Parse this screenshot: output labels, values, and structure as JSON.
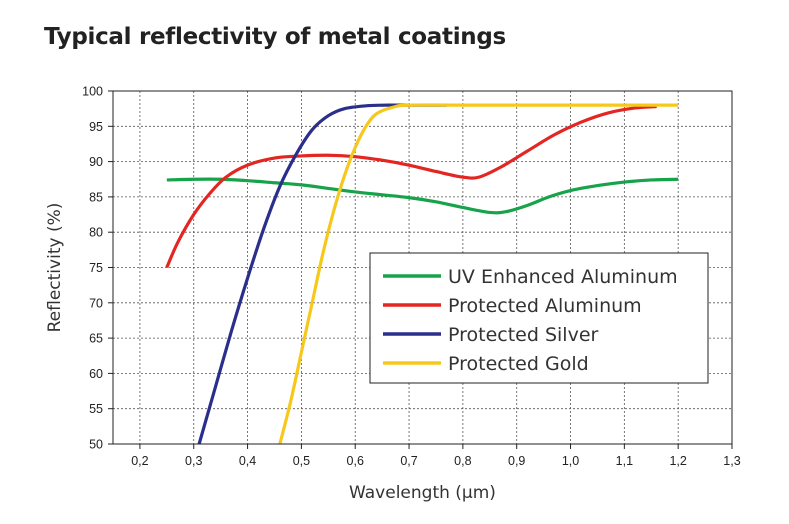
{
  "chart_data": {
    "type": "line",
    "title": "Typical reflectivity of metal coatings",
    "xlabel": "Wavelength (µm)",
    "ylabel": "Reflectivity (%)",
    "xlim": [
      0.15,
      1.3
    ],
    "ylim": [
      50,
      100
    ],
    "x_ticks": [
      "0,2",
      "0,3",
      "0,4",
      "0,5",
      "0,6",
      "0,7",
      "0,8",
      "0,9",
      "1,0",
      "1,1",
      "1,2",
      "1,3"
    ],
    "y_ticks": [
      "50",
      "55",
      "60",
      "65",
      "70",
      "75",
      "80",
      "85",
      "90",
      "95",
      "100"
    ],
    "grid": true,
    "legend_position": "lower-right",
    "series": [
      {
        "name": "UV Enhanced Aluminum",
        "color": "#17a34a",
        "points": [
          [
            0.25,
            87.4
          ],
          [
            0.3,
            87.5
          ],
          [
            0.35,
            87.5
          ],
          [
            0.4,
            87.3
          ],
          [
            0.45,
            87.0
          ],
          [
            0.5,
            86.7
          ],
          [
            0.55,
            86.2
          ],
          [
            0.6,
            85.7
          ],
          [
            0.65,
            85.3
          ],
          [
            0.7,
            84.9
          ],
          [
            0.75,
            84.3
          ],
          [
            0.8,
            83.5
          ],
          [
            0.85,
            82.8
          ],
          [
            0.88,
            82.9
          ],
          [
            0.92,
            83.8
          ],
          [
            0.96,
            85.0
          ],
          [
            1.0,
            85.9
          ],
          [
            1.05,
            86.6
          ],
          [
            1.1,
            87.1
          ],
          [
            1.15,
            87.4
          ],
          [
            1.2,
            87.5
          ]
        ]
      },
      {
        "name": "Protected Aluminum",
        "color": "#e32622",
        "points": [
          [
            0.25,
            75.0
          ],
          [
            0.27,
            78.5
          ],
          [
            0.3,
            82.5
          ],
          [
            0.33,
            85.5
          ],
          [
            0.36,
            87.8
          ],
          [
            0.4,
            89.5
          ],
          [
            0.45,
            90.5
          ],
          [
            0.5,
            90.8
          ],
          [
            0.55,
            90.9
          ],
          [
            0.6,
            90.7
          ],
          [
            0.65,
            90.2
          ],
          [
            0.7,
            89.5
          ],
          [
            0.75,
            88.6
          ],
          [
            0.8,
            87.8
          ],
          [
            0.83,
            87.8
          ],
          [
            0.87,
            89.2
          ],
          [
            0.92,
            91.5
          ],
          [
            0.97,
            93.8
          ],
          [
            1.02,
            95.6
          ],
          [
            1.07,
            96.9
          ],
          [
            1.12,
            97.6
          ],
          [
            1.16,
            97.8
          ]
        ]
      },
      {
        "name": "Protected Silver",
        "color": "#2b2f8c",
        "points": [
          [
            0.31,
            50.0
          ],
          [
            0.34,
            58.0
          ],
          [
            0.37,
            66.0
          ],
          [
            0.4,
            73.5
          ],
          [
            0.43,
            80.5
          ],
          [
            0.46,
            86.5
          ],
          [
            0.49,
            91.0
          ],
          [
            0.52,
            94.5
          ],
          [
            0.55,
            96.5
          ],
          [
            0.58,
            97.5
          ],
          [
            0.62,
            97.9
          ],
          [
            0.66,
            98.0
          ],
          [
            0.7,
            98.0
          ],
          [
            0.77,
            98.0
          ]
        ]
      },
      {
        "name": "Protected Gold",
        "color": "#f7c81c",
        "points": [
          [
            0.46,
            50.0
          ],
          [
            0.48,
            56.0
          ],
          [
            0.5,
            63.0
          ],
          [
            0.52,
            70.0
          ],
          [
            0.54,
            77.0
          ],
          [
            0.56,
            83.0
          ],
          [
            0.58,
            88.0
          ],
          [
            0.6,
            92.0
          ],
          [
            0.62,
            95.0
          ],
          [
            0.64,
            96.8
          ],
          [
            0.67,
            97.7
          ],
          [
            0.7,
            98.0
          ],
          [
            0.8,
            98.0
          ],
          [
            1.0,
            98.0
          ],
          [
            1.2,
            98.0
          ]
        ]
      }
    ]
  }
}
